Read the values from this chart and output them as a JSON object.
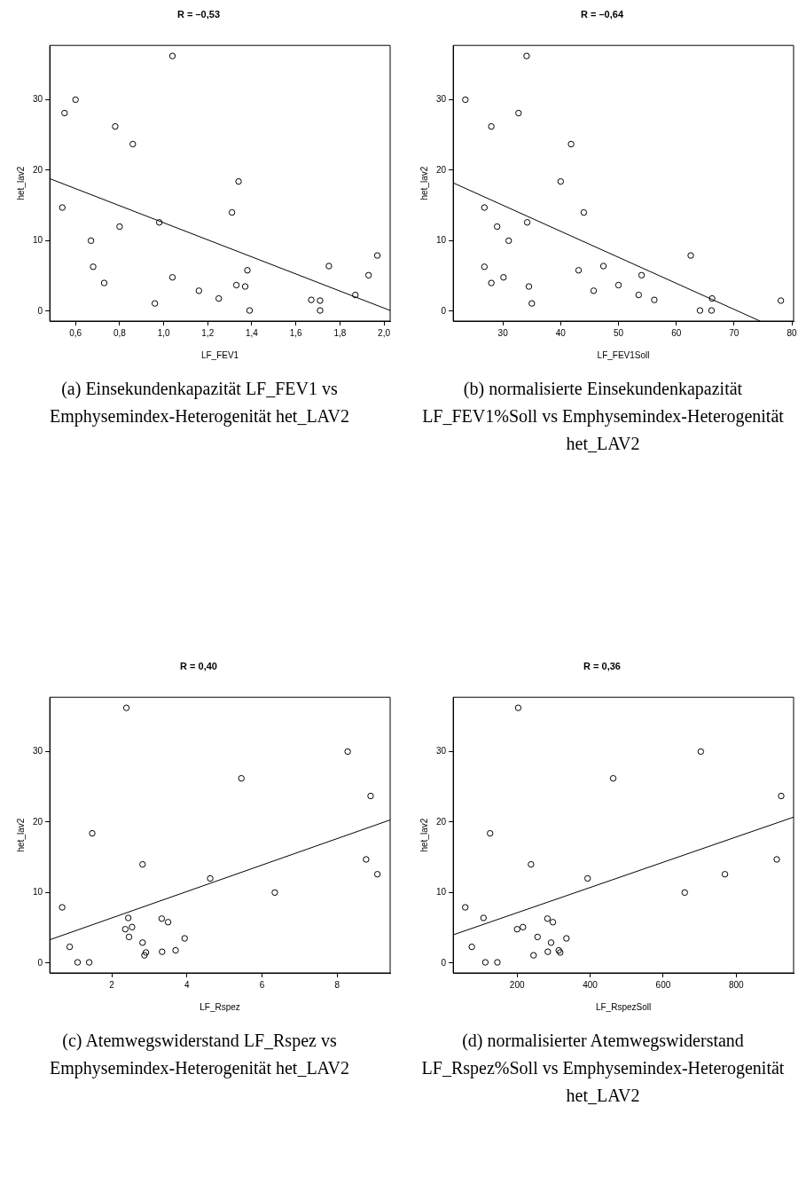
{
  "chart_data": [
    {
      "type": "scatter",
      "title": "R = –0,53",
      "xlabel": "LF_FEV1",
      "ylabel": "het_lav2",
      "xlim": [
        0.483,
        2.028
      ],
      "ylim": [
        -1.4,
        37.7
      ],
      "xticks": [
        {
          "value": 0.6,
          "label": "0,6"
        },
        {
          "value": 0.8,
          "label": "0,8"
        },
        {
          "value": 1.0,
          "label": "1,0"
        },
        {
          "value": 1.2,
          "label": "1,2"
        },
        {
          "value": 1.4,
          "label": "1,4"
        },
        {
          "value": 1.6,
          "label": "1,6"
        },
        {
          "value": 1.8,
          "label": "1,8"
        },
        {
          "value": 2.0,
          "label": "2,0"
        }
      ],
      "yticks": [
        0,
        10,
        20,
        30
      ],
      "series": [
        {
          "type": "scatter",
          "color": "#000000",
          "marker": "circle",
          "x": [
            0.54,
            0.55,
            0.6,
            0.67,
            0.68,
            0.73,
            0.78,
            0.8,
            0.86,
            0.96,
            0.98,
            1.04,
            1.04,
            1.16,
            1.25,
            1.31,
            1.33,
            1.34,
            1.37,
            1.38,
            1.39,
            1.67,
            1.71,
            1.71,
            1.75,
            1.87,
            1.93,
            1.97
          ],
          "values": [
            14.7,
            28.1,
            30,
            10,
            6.3,
            4,
            26.2,
            12,
            23.7,
            1.1,
            12.6,
            36.2,
            4.8,
            2.9,
            1.8,
            14,
            3.7,
            18.4,
            3.5,
            5.8,
            0.1,
            1.6,
            1.5,
            0.1,
            6.4,
            2.3,
            5.1,
            7.9
          ]
        },
        {
          "type": "line",
          "color": "#000000",
          "marker": "none",
          "x": [
            0.483,
            2.028
          ],
          "values": [
            18.8,
            0.1
          ]
        }
      ],
      "annotations": [
        "(a) Einsekundenkapazität LF_FEV1 vs Emphysemindex-Heterogenität het_LAV2"
      ]
    },
    {
      "type": "scatter",
      "title": "R = –0,64",
      "xlabel": "LF_FEV1Soll",
      "ylabel": "het_lav2",
      "xlim": [
        21.4,
        80.3
      ],
      "ylim": [
        -1.4,
        37.7
      ],
      "xticks": [
        30,
        40,
        50,
        60,
        70,
        80
      ],
      "yticks": [
        0,
        10,
        20,
        30
      ],
      "series": [
        {
          "type": "scatter",
          "color": "#000000",
          "marker": "circle",
          "x": [
            23.5,
            26.8,
            26.8,
            28,
            28,
            29,
            30.1,
            31,
            32.7,
            34.1,
            34.2,
            34.5,
            35,
            40,
            41.8,
            43.1,
            44,
            45.7,
            47.4,
            50,
            53.5,
            54,
            56.2,
            62.5,
            64.1,
            66.1,
            66.2,
            78.1
          ],
          "values": [
            30,
            14.7,
            6.3,
            26.2,
            4,
            12,
            4.8,
            10,
            28.1,
            36.2,
            12.6,
            3.5,
            1.1,
            18.4,
            23.7,
            5.8,
            14,
            2.9,
            6.4,
            3.7,
            2.3,
            5.1,
            1.6,
            7.9,
            0.1,
            0.1,
            1.8,
            1.5
          ]
        },
        {
          "type": "line",
          "color": "#000000",
          "marker": "none",
          "x": [
            21.4,
            74.5
          ],
          "values": [
            18.2,
            -1.4
          ]
        }
      ],
      "annotations": [
        "(b) normalisierte Einsekundenkapazität LF_FEV1%Soll vs Emphysemindex-Heterogenität het_LAV2"
      ]
    },
    {
      "type": "scatter",
      "title": "R = 0,40",
      "xlabel": "LF_Rspez",
      "ylabel": "het_lav2",
      "xlim": [
        0.35,
        9.41
      ],
      "ylim": [
        -1.4,
        37.7
      ],
      "xticks": [
        2,
        4,
        6,
        8
      ],
      "yticks": [
        0,
        10,
        20,
        30
      ],
      "series": [
        {
          "type": "scatter",
          "color": "#000000",
          "marker": "circle",
          "x": [
            0.68,
            0.88,
            1.09,
            1.4,
            1.48,
            2.36,
            2.39,
            2.44,
            2.46,
            2.54,
            2.82,
            2.82,
            2.87,
            2.91,
            3.33,
            3.34,
            3.5,
            3.7,
            3.94,
            4.62,
            5.45,
            6.34,
            8.28,
            8.77,
            8.89,
            9.07
          ],
          "values": [
            7.9,
            2.3,
            0.1,
            0.1,
            18.4,
            4.8,
            36.2,
            6.4,
            3.7,
            5.1,
            14,
            2.9,
            1.1,
            1.5,
            6.3,
            1.6,
            5.8,
            1.8,
            3.5,
            12,
            26.2,
            10,
            30,
            14.7,
            23.7,
            12.6
          ]
        },
        {
          "type": "line",
          "color": "#000000",
          "marker": "none",
          "x": [
            0.35,
            9.41
          ],
          "values": [
            3.3,
            20.3
          ]
        }
      ],
      "annotations": [
        "(c) Atemwegswiderstand LF_Rspez vs Emphysemindex-Heterogenität het_LAV2"
      ]
    },
    {
      "type": "scatter",
      "title": "R = 0,36",
      "xlabel": "LF_RspezSoll",
      "ylabel": "het_lav2",
      "xlim": [
        25,
        957
      ],
      "ylim": [
        -1.4,
        37.7
      ],
      "xticks": [
        200,
        400,
        600,
        800
      ],
      "yticks": [
        0,
        10,
        20,
        30
      ],
      "series": [
        {
          "type": "scatter",
          "color": "#000000",
          "marker": "circle",
          "x": [
            58,
            76,
            108,
            113,
            126,
            146,
            200,
            203,
            216,
            238,
            245,
            256,
            283,
            284,
            293,
            298,
            314,
            318,
            335,
            393,
            463,
            659,
            703,
            769,
            911,
            923
          ],
          "values": [
            7.9,
            2.3,
            6.4,
            0.1,
            18.4,
            0.1,
            4.8,
            36.2,
            5.1,
            14,
            1.1,
            3.7,
            6.3,
            1.6,
            2.9,
            5.8,
            1.8,
            1.5,
            3.5,
            12,
            26.2,
            10,
            30,
            12.6,
            14.7,
            23.7
          ]
        },
        {
          "type": "line",
          "color": "#000000",
          "marker": "none",
          "x": [
            25,
            957
          ],
          "values": [
            4,
            20.7
          ]
        }
      ],
      "annotations": [
        "(d) normalisierter Atemwegswiderstand LF_Rspez%Soll vs Emphysemindex-Heterogenität het_LAV2"
      ]
    }
  ]
}
